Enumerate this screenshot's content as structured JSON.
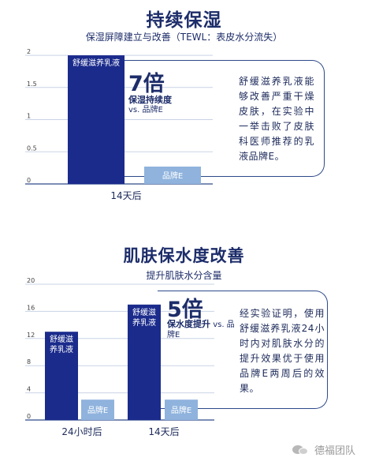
{
  "chart_data": [
    {
      "type": "bar",
      "title": "持续保湿",
      "subtitle": "保湿屏障建立与改善（TEWL：表皮水分流失）",
      "categories": [
        "14天后"
      ],
      "series": [
        {
          "name": "舒缓滋养乳液",
          "values": [
            2.0
          ],
          "color": "#1b2b8c"
        },
        {
          "name": "品牌E",
          "values": [
            0.27
          ],
          "color": "#8fb3dd"
        }
      ],
      "bar_labels": [
        "舒缓滋养乳液",
        "品牌E"
      ],
      "y_ticks": [
        0,
        0.5,
        1,
        1.5,
        2
      ],
      "y_tick_labels": [
        "0",
        "0.5",
        "1",
        "1.5",
        "2"
      ],
      "ylim": [
        0,
        2.05
      ],
      "grid": true,
      "multiplier": "7倍",
      "multiplier_label": "保湿持续度",
      "multiplier_vs": "vs. 品牌E",
      "note": "舒缓滋养乳液能够改善严重干燥皮肤，在实验中一举击败了皮肤科医师推荐的乳液品牌E。"
    },
    {
      "type": "bar",
      "title": "肌肤保水度改善",
      "subtitle": "提升肌肤水分含量",
      "categories": [
        "24小时后",
        "14天后"
      ],
      "series": [
        {
          "name": "舒缓滋养乳液",
          "values": [
            13,
            17
          ],
          "color": "#1b2b8c"
        },
        {
          "name": "品牌E",
          "values": [
            3,
            3
          ],
          "color": "#8fb3dd"
        }
      ],
      "bar_labels": [
        "舒缓滋养乳液",
        "品牌E"
      ],
      "y_ticks": [
        0,
        4,
        8,
        12,
        16,
        20
      ],
      "y_tick_labels": [
        "0",
        "4",
        "8",
        "12",
        "16",
        "20"
      ],
      "ylim": [
        0,
        20
      ],
      "grid": true,
      "multiplier": "5倍",
      "multiplier_label": "保水度提升",
      "multiplier_vs": "vs. 品牌E",
      "note": "经实验证明，使用舒缓滋养乳液24小时内对肌肤水分的提升效果优于使用品牌E两周后的效果。"
    }
  ],
  "watermark": {
    "text": "德福团队",
    "icon": "wechat-bubbles-icon"
  }
}
